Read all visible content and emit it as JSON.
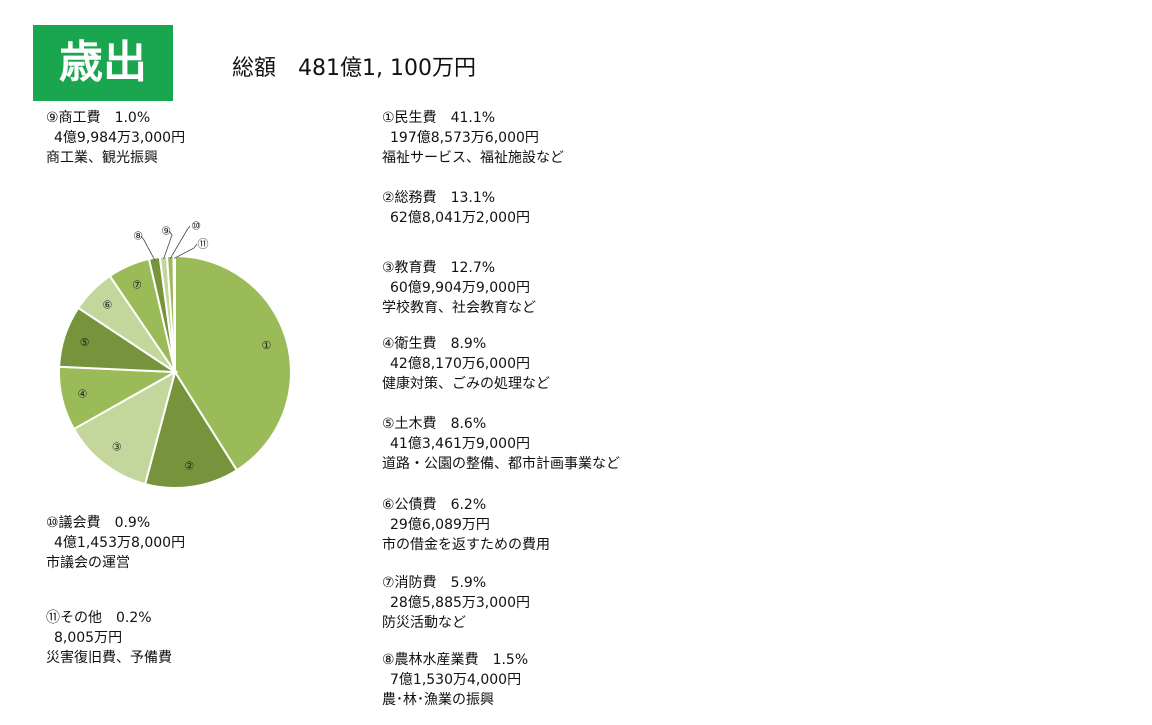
{
  "header": {
    "title": "歳出",
    "total": "総額　481億1, 100万円"
  },
  "chart_data": {
    "type": "pie",
    "title": "歳出",
    "slices": [
      {
        "label": "①",
        "name": "民生費",
        "percent": 41.1,
        "amount": "197億8,573万6,000円",
        "description": "福祉サービス、福祉施設など",
        "color": "#9bbb59"
      },
      {
        "label": "②",
        "name": "総務費",
        "percent": 13.1,
        "amount": "62億8,041万2,000円",
        "description": "",
        "color": "#77933c"
      },
      {
        "label": "③",
        "name": "教育費",
        "percent": 12.7,
        "amount": "60億9,904万9,000円",
        "description": "学校教育、社会教育など",
        "color": "#c3d69b"
      },
      {
        "label": "④",
        "name": "衛生費",
        "percent": 8.9,
        "amount": "42億8,170万6,000円",
        "description": "健康対策、ごみの処理など",
        "color": "#9bbb59"
      },
      {
        "label": "⑤",
        "name": "土木費",
        "percent": 8.6,
        "amount": "41億3,461万9,000円",
        "description": "道路・公園の整備、都市計画事業など",
        "color": "#77933c"
      },
      {
        "label": "⑥",
        "name": "公債費",
        "percent": 6.2,
        "amount": "29億6,089万円",
        "description": "市の借金を返すための費用",
        "color": "#c3d69b"
      },
      {
        "label": "⑦",
        "name": "消防費",
        "percent": 5.9,
        "amount": "28億5,885万3,000円",
        "description": "防災活動など",
        "color": "#9bbb59"
      },
      {
        "label": "⑧",
        "name": "農林水産業費",
        "percent": 1.5,
        "amount": "7億1,530万4,000円",
        "description": "農･林･漁業の振興",
        "color": "#77933c"
      },
      {
        "label": "⑨",
        "name": "商工費",
        "percent": 1.0,
        "amount": "4億9,984万3,000円",
        "description": "商工業、観光振興",
        "color": "#c3d69b"
      },
      {
        "label": "⑩",
        "name": "議会費",
        "percent": 0.9,
        "amount": "4億1,453万8,000円",
        "description": "市議会の運営",
        "color": "#9bbb59"
      },
      {
        "label": "⑪",
        "name": "その他",
        "percent": 0.2,
        "amount": "8,005万円",
        "description": "災害復旧費、予備費",
        "color": "#77933c"
      }
    ]
  }
}
